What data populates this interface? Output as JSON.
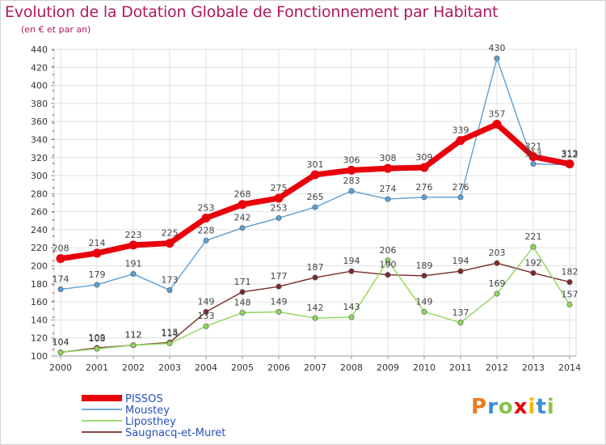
{
  "header": {
    "title": "Evolution de la Dotation Globale de Fonctionnement par Habitant",
    "subtitle": "(en € et par an)"
  },
  "logo": {
    "text": "Proxiti"
  },
  "chart_data": {
    "type": "line",
    "title": "Evolution de la Dotation Globale de Fonctionnement par Habitant",
    "subtitle": "(en € et par an)",
    "xlabel": "",
    "ylabel": "",
    "ylim": [
      100,
      440
    ],
    "yticks": [
      100,
      120,
      140,
      160,
      180,
      200,
      220,
      240,
      260,
      280,
      300,
      320,
      340,
      360,
      380,
      400,
      420,
      440
    ],
    "grid": true,
    "legend_position": "bottom-left",
    "x": [
      "2000",
      "2001",
      "2002",
      "2003",
      "2004",
      "2005",
      "2006",
      "2007",
      "2008",
      "2009",
      "2010",
      "2011",
      "2012",
      "2013",
      "2014"
    ],
    "series": [
      {
        "name": "PISSOS",
        "color": "#e8000b",
        "values": [
          208,
          214,
          223,
          225,
          253,
          268,
          275,
          301,
          306,
          308,
          309,
          339,
          357,
          321,
          313
        ]
      },
      {
        "name": "Moustey",
        "color": "#5a9fd4",
        "values": [
          174,
          179,
          191,
          173,
          228,
          242,
          253,
          265,
          283,
          274,
          276,
          276,
          430,
          313,
          312
        ]
      },
      {
        "name": "Liposthey",
        "color": "#8fd65a",
        "values": [
          104,
          108,
          112,
          114,
          133,
          148,
          149,
          142,
          143,
          206,
          149,
          137,
          169,
          221,
          157
        ]
      },
      {
        "name": "Saugnacq-et-Muret",
        "color": "#7a2a2a",
        "values": [
          104,
          109,
          112,
          115,
          149,
          171,
          177,
          187,
          194,
          190,
          189,
          194,
          203,
          192,
          182
        ]
      }
    ]
  }
}
